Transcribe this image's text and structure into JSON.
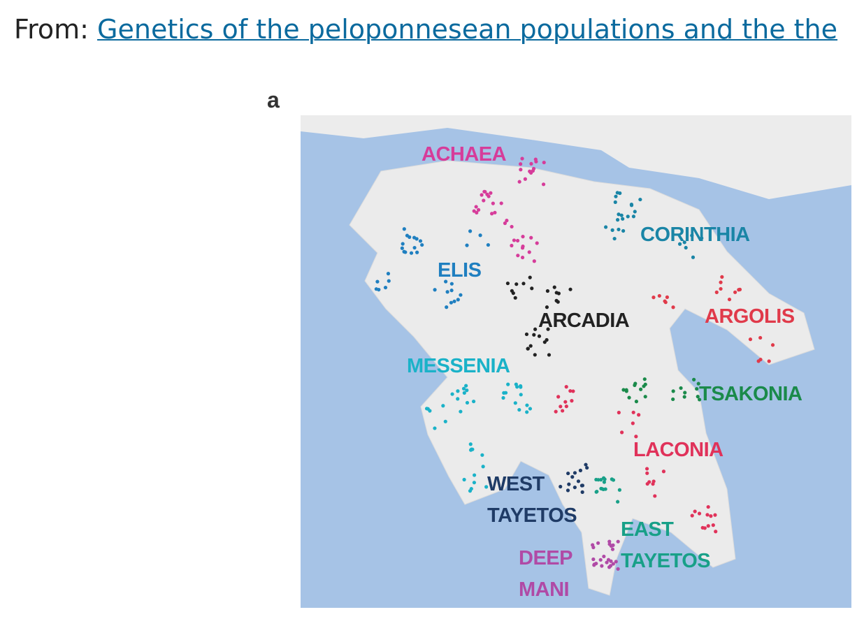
{
  "header": {
    "prefix": "From:",
    "link": "Genetics of the peloponnesean populations and the the"
  },
  "figure": {
    "panel": "a",
    "map": {
      "labels": [
        {
          "lines": [
            "ACHAEA"
          ]
        },
        {
          "lines": [
            "CORINTHIA"
          ]
        },
        {
          "lines": [
            "ELIS"
          ]
        },
        {
          "lines": [
            "ARCADIA"
          ]
        },
        {
          "lines": [
            "ARGOLIS"
          ]
        },
        {
          "lines": [
            "MESSENIA"
          ]
        },
        {
          "lines": [
            "TSAKONIA"
          ]
        },
        {
          "lines": [
            "LACONIA"
          ]
        },
        {
          "lines": [
            "WEST",
            "TAYETOS"
          ]
        },
        {
          "lines": [
            "EAST",
            "TAYETOS"
          ]
        },
        {
          "lines": [
            "DEEP",
            "MANI"
          ]
        }
      ]
    }
  }
}
